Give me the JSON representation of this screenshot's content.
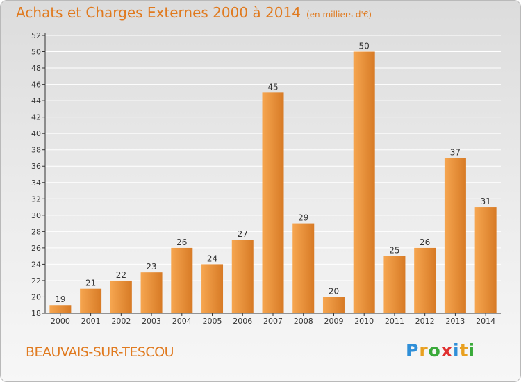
{
  "header": {
    "title": "Achats et Charges Externes 2000 à 2014",
    "unit": "(en milliers d'€)"
  },
  "footer": {
    "commune": "BEAUVAIS-SUR-TESCOU",
    "logo_text": "Proxiti",
    "logo_letters": [
      {
        "ch": "P",
        "color": "#2f8fd8"
      },
      {
        "ch": "r",
        "color": "#e8a020"
      },
      {
        "ch": "o",
        "color": "#3aaa3a"
      },
      {
        "ch": "x",
        "color": "#e03030"
      },
      {
        "ch": "i",
        "color": "#2f8fd8"
      },
      {
        "ch": "t",
        "color": "#e8a020"
      },
      {
        "ch": "i",
        "color": "#3aaa3a"
      }
    ]
  },
  "colors": {
    "bar_light": "#f6a650",
    "bar_dark": "#d77a25",
    "title": "#e07a1f",
    "axis": "#333333",
    "grid": "#ffffff"
  },
  "chart_data": {
    "type": "bar",
    "title": "Achats et Charges Externes 2000 à 2014",
    "subtitle": "(en milliers d'€)",
    "categories": [
      "2000",
      "2001",
      "2002",
      "2003",
      "2004",
      "2005",
      "2006",
      "2007",
      "2008",
      "2009",
      "2010",
      "2011",
      "2012",
      "2013",
      "2014"
    ],
    "values": [
      19,
      21,
      22,
      23,
      26,
      24,
      27,
      45,
      29,
      20,
      50,
      25,
      26,
      37,
      31
    ],
    "ylim": [
      18,
      52
    ],
    "yticks": [
      18,
      20,
      22,
      24,
      26,
      28,
      30,
      32,
      34,
      36,
      38,
      40,
      42,
      44,
      46,
      48,
      50,
      52
    ],
    "grid": true,
    "legend": "none"
  }
}
